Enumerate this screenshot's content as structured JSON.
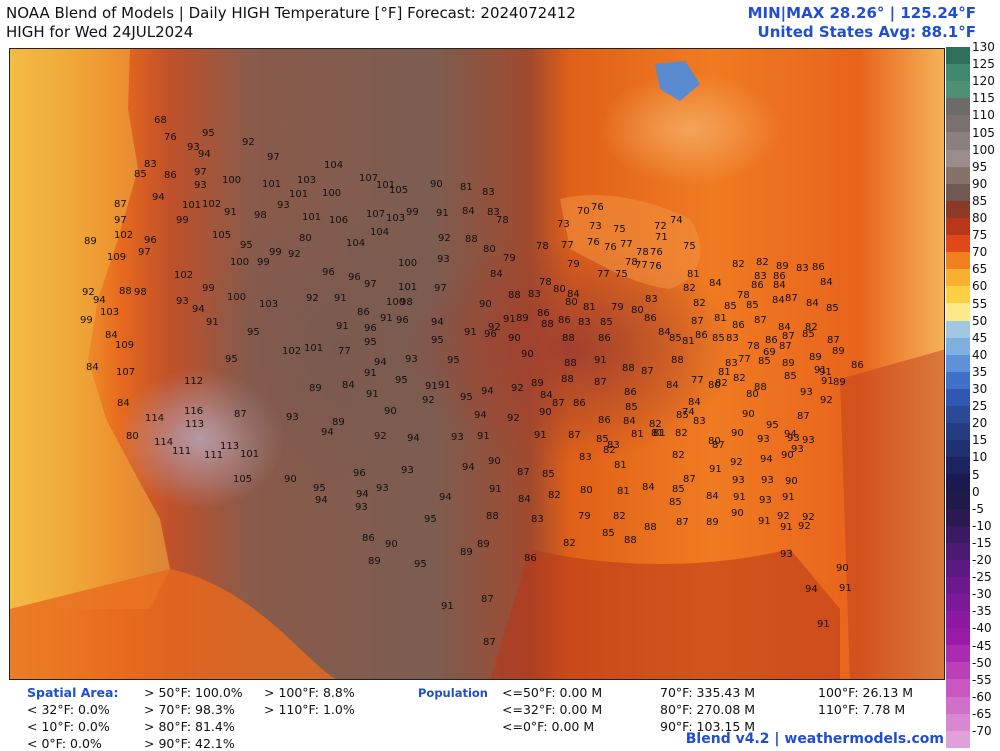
{
  "header": {
    "title_line1": "NOAA Blend of Models | Daily HIGH Temperature [°F] Forecast: 2024072412",
    "title_line2": "HIGH for Wed 24JUL2024",
    "minmax": "MIN|MAX 28.26°  |  125.24°F",
    "avg": "United States Avg: 88.1°F"
  },
  "colorbar": {
    "ticks": [
      "130",
      "125",
      "120",
      "115",
      "110",
      "105",
      "100",
      "95",
      "90",
      "85",
      "80",
      "75",
      "70",
      "65",
      "60",
      "55",
      "50",
      "45",
      "40",
      "35",
      "30",
      "25",
      "20",
      "15",
      "10",
      "5",
      "0",
      "-5",
      "-10",
      "-15",
      "-20",
      "-25",
      "-30",
      "-35",
      "-40",
      "-45",
      "-50",
      "-55",
      "-60",
      "-65",
      "-70"
    ],
    "colors": [
      "#2f6e5a",
      "#3f8a6e",
      "#4f8f74",
      "#6d6a6a",
      "#7a7070",
      "#8a8080",
      "#9a8c8c",
      "#857268",
      "#6e5a52",
      "#8a3a26",
      "#b8361a",
      "#e0481a",
      "#f08020",
      "#f8b030",
      "#fcd040",
      "#fde88a",
      "#a0c8e0",
      "#80b0e0",
      "#6090d8",
      "#4070c8",
      "#3058b0",
      "#2a4a98",
      "#243c80",
      "#203070",
      "#1c2460",
      "#1a1a50",
      "#201a48",
      "#2a1a50",
      "#3a1a60",
      "#4a1a70",
      "#5a1a80",
      "#6a1a8c",
      "#7a1a98",
      "#8a1aa0",
      "#9a1aa8",
      "#aa2ab0",
      "#ba40b8",
      "#c858c0",
      "#d070c8",
      "#d888d0",
      "#e0a0d8"
    ]
  },
  "map_labels": [
    [
      "68",
      160,
      118
    ],
    [
      "76",
      170,
      135
    ],
    [
      "95",
      208,
      131
    ],
    [
      "92",
      248,
      140
    ],
    [
      "97",
      273,
      155
    ],
    [
      "93",
      193,
      145
    ],
    [
      "94",
      204,
      152
    ],
    [
      "83",
      150,
      162
    ],
    [
      "85",
      140,
      172
    ],
    [
      "86",
      170,
      173
    ],
    [
      "97",
      200,
      170
    ],
    [
      "93",
      200,
      183
    ],
    [
      "100",
      228,
      178
    ],
    [
      "101",
      268,
      182
    ],
    [
      "103",
      303,
      178
    ],
    [
      "104",
      330,
      163
    ],
    [
      "94",
      158,
      195
    ],
    [
      "101",
      188,
      203
    ],
    [
      "102",
      208,
      202
    ],
    [
      "91",
      230,
      210
    ],
    [
      "98",
      260,
      213
    ],
    [
      "93",
      283,
      203
    ],
    [
      "101",
      295,
      192
    ],
    [
      "100",
      328,
      191
    ],
    [
      "107",
      365,
      176
    ],
    [
      "101",
      382,
      183
    ],
    [
      "105",
      395,
      188
    ],
    [
      "90",
      436,
      182
    ],
    [
      "81",
      466,
      185
    ],
    [
      "83",
      488,
      190
    ],
    [
      "87",
      120,
      202
    ],
    [
      "97",
      120,
      218
    ],
    [
      "99",
      182,
      218
    ],
    [
      "105",
      218,
      233
    ],
    [
      "95",
      246,
      243
    ],
    [
      "101",
      308,
      215
    ],
    [
      "106",
      335,
      218
    ],
    [
      "107",
      372,
      212
    ],
    [
      "103",
      392,
      216
    ],
    [
      "99",
      412,
      210
    ],
    [
      "91",
      442,
      211
    ],
    [
      "84",
      468,
      209
    ],
    [
      "83",
      493,
      210
    ],
    [
      "104",
      376,
      230
    ],
    [
      "104",
      352,
      241
    ],
    [
      "80",
      305,
      236
    ],
    [
      "92",
      444,
      236
    ],
    [
      "88",
      471,
      237
    ],
    [
      "80",
      489,
      247
    ],
    [
      "78",
      502,
      218
    ],
    [
      "89",
      90,
      239
    ],
    [
      "102",
      120,
      233
    ],
    [
      "96",
      150,
      238
    ],
    [
      "97",
      144,
      250
    ],
    [
      "109",
      113,
      255
    ],
    [
      "100",
      236,
      260
    ],
    [
      "99",
      263,
      260
    ],
    [
      "99",
      275,
      250
    ],
    [
      "92",
      294,
      252
    ],
    [
      "96",
      328,
      270
    ],
    [
      "96",
      354,
      275
    ],
    [
      "97",
      370,
      282
    ],
    [
      "100",
      404,
      261
    ],
    [
      "93",
      443,
      257
    ],
    [
      "84",
      496,
      272
    ],
    [
      "79",
      509,
      256
    ],
    [
      "78",
      542,
      244
    ],
    [
      "77",
      567,
      243
    ],
    [
      "73",
      563,
      222
    ],
    [
      "70",
      583,
      209
    ],
    [
      "76",
      597,
      205
    ],
    [
      "73",
      595,
      224
    ],
    [
      "75",
      619,
      227
    ],
    [
      "76",
      593,
      240
    ],
    [
      "76",
      610,
      245
    ],
    [
      "77",
      626,
      242
    ],
    [
      "78",
      642,
      250
    ],
    [
      "76",
      656,
      250
    ],
    [
      "72",
      660,
      224
    ],
    [
      "74",
      676,
      218
    ],
    [
      "71",
      661,
      235
    ],
    [
      "78",
      631,
      260
    ],
    [
      "76",
      655,
      264
    ],
    [
      "81",
      693,
      272
    ],
    [
      "75",
      689,
      244
    ],
    [
      "77",
      603,
      272
    ],
    [
      "75",
      621,
      272
    ],
    [
      "77",
      641,
      263
    ],
    [
      "79",
      573,
      262
    ],
    [
      "78",
      545,
      280
    ],
    [
      "80",
      559,
      287
    ],
    [
      "84",
      573,
      292
    ],
    [
      "80",
      571,
      300
    ],
    [
      "81",
      589,
      305
    ],
    [
      "92",
      88,
      290
    ],
    [
      "88",
      125,
      289
    ],
    [
      "98",
      140,
      290
    ],
    [
      "102",
      180,
      273
    ],
    [
      "99",
      208,
      286
    ],
    [
      "100",
      233,
      295
    ],
    [
      "103",
      265,
      302
    ],
    [
      "93",
      182,
      299
    ],
    [
      "94",
      198,
      307
    ],
    [
      "91",
      212,
      320
    ],
    [
      "92",
      312,
      296
    ],
    [
      "91",
      340,
      296
    ],
    [
      "86",
      363,
      310
    ],
    [
      "91",
      386,
      316
    ],
    [
      "101",
      404,
      285
    ],
    [
      "100",
      392,
      300
    ],
    [
      "98",
      406,
      300
    ],
    [
      "96",
      402,
      318
    ],
    [
      "97",
      440,
      286
    ],
    [
      "90",
      485,
      302
    ],
    [
      "88",
      514,
      293
    ],
    [
      "83",
      534,
      292
    ],
    [
      "94",
      99,
      298
    ],
    [
      "103",
      106,
      310
    ],
    [
      "99",
      86,
      318
    ],
    [
      "94",
      437,
      320
    ],
    [
      "91",
      470,
      330
    ],
    [
      "92",
      494,
      325
    ],
    [
      "91",
      509,
      317
    ],
    [
      "89",
      522,
      316
    ],
    [
      "86",
      543,
      311
    ],
    [
      "88",
      547,
      322
    ],
    [
      "86",
      564,
      318
    ],
    [
      "83",
      584,
      320
    ],
    [
      "85",
      606,
      320
    ],
    [
      "82",
      689,
      286
    ],
    [
      "84",
      715,
      281
    ],
    [
      "82",
      738,
      262
    ],
    [
      "82",
      762,
      260
    ],
    [
      "83",
      760,
      274
    ],
    [
      "86",
      779,
      274
    ],
    [
      "89",
      782,
      264
    ],
    [
      "83",
      802,
      266
    ],
    [
      "86",
      818,
      265
    ],
    [
      "84",
      826,
      280
    ],
    [
      "78",
      743,
      293
    ],
    [
      "85",
      752,
      303
    ],
    [
      "86",
      757,
      283
    ],
    [
      "84",
      778,
      298
    ],
    [
      "87",
      791,
      296
    ],
    [
      "84",
      812,
      301
    ],
    [
      "85",
      832,
      306
    ],
    [
      "82",
      699,
      301
    ],
    [
      "85",
      730,
      304
    ],
    [
      "84",
      779,
      283
    ],
    [
      "79",
      617,
      305
    ],
    [
      "80",
      637,
      308
    ],
    [
      "83",
      651,
      297
    ],
    [
      "86",
      650,
      316
    ],
    [
      "84",
      664,
      330
    ],
    [
      "85",
      675,
      336
    ],
    [
      "81",
      688,
      339
    ],
    [
      "87",
      697,
      319
    ],
    [
      "86",
      701,
      333
    ],
    [
      "85",
      718,
      336
    ],
    [
      "81",
      720,
      316
    ],
    [
      "86",
      738,
      323
    ],
    [
      "83",
      732,
      336
    ],
    [
      "87",
      760,
      318
    ],
    [
      "86",
      771,
      338
    ],
    [
      "84",
      784,
      325
    ],
    [
      "87",
      788,
      334
    ],
    [
      "82",
      811,
      325
    ],
    [
      "78",
      753,
      344
    ],
    [
      "69",
      769,
      350
    ],
    [
      "77",
      744,
      357
    ],
    [
      "85",
      764,
      359
    ],
    [
      "83",
      731,
      361
    ],
    [
      "81",
      724,
      370
    ],
    [
      "82",
      721,
      381
    ],
    [
      "80",
      714,
      383
    ],
    [
      "77",
      697,
      378
    ],
    [
      "87",
      785,
      344
    ],
    [
      "85",
      808,
      332
    ],
    [
      "87",
      833,
      338
    ],
    [
      "89",
      815,
      355
    ],
    [
      "91",
      825,
      370
    ],
    [
      "84",
      111,
      333
    ],
    [
      "95",
      253,
      330
    ],
    [
      "91",
      342,
      324
    ],
    [
      "96",
      370,
      326
    ],
    [
      "95",
      370,
      340
    ],
    [
      "102",
      288,
      349
    ],
    [
      "101",
      310,
      346
    ],
    [
      "77",
      344,
      349
    ],
    [
      "93",
      411,
      357
    ],
    [
      "95",
      453,
      358
    ],
    [
      "95",
      437,
      338
    ],
    [
      "96",
      490,
      332
    ],
    [
      "90",
      514,
      336
    ],
    [
      "90",
      527,
      352
    ],
    [
      "88",
      568,
      336
    ],
    [
      "86",
      604,
      336
    ],
    [
      "88",
      570,
      361
    ],
    [
      "91",
      600,
      358
    ],
    [
      "88",
      628,
      366
    ],
    [
      "87",
      647,
      369
    ],
    [
      "88",
      677,
      358
    ],
    [
      "94",
      380,
      360
    ],
    [
      "91",
      370,
      371
    ],
    [
      "109",
      121,
      343
    ],
    [
      "84",
      92,
      365
    ],
    [
      "107",
      122,
      370
    ],
    [
      "95",
      231,
      357
    ],
    [
      "112",
      190,
      379
    ],
    [
      "89",
      315,
      386
    ],
    [
      "84",
      348,
      383
    ],
    [
      "91",
      372,
      392
    ],
    [
      "95",
      401,
      378
    ],
    [
      "91",
      431,
      384
    ],
    [
      "91",
      444,
      383
    ],
    [
      "95",
      466,
      395
    ],
    [
      "94",
      487,
      389
    ],
    [
      "92",
      517,
      386
    ],
    [
      "89",
      537,
      381
    ],
    [
      "88",
      567,
      377
    ],
    [
      "87",
      600,
      380
    ],
    [
      "84",
      546,
      393
    ],
    [
      "87",
      558,
      401
    ],
    [
      "86",
      579,
      401
    ],
    [
      "86",
      604,
      418
    ],
    [
      "86",
      630,
      390
    ],
    [
      "85",
      631,
      405
    ],
    [
      "84",
      629,
      419
    ],
    [
      "82",
      655,
      422
    ],
    [
      "81",
      657,
      431
    ],
    [
      "85",
      682,
      413
    ],
    [
      "74",
      688,
      410
    ],
    [
      "83",
      699,
      419
    ],
    [
      "84",
      672,
      383
    ],
    [
      "84",
      694,
      400
    ],
    [
      "82",
      739,
      376
    ],
    [
      "80",
      752,
      392
    ],
    [
      "88",
      760,
      385
    ],
    [
      "89",
      788,
      361
    ],
    [
      "85",
      790,
      374
    ],
    [
      "93",
      806,
      390
    ],
    [
      "91",
      820,
      368
    ],
    [
      "91",
      827,
      379
    ],
    [
      "92",
      826,
      398
    ],
    [
      "89",
      839,
      380
    ],
    [
      "89",
      838,
      349
    ],
    [
      "86",
      857,
      363
    ],
    [
      "87",
      803,
      414
    ],
    [
      "95",
      772,
      423
    ],
    [
      "93",
      793,
      436
    ],
    [
      "93",
      797,
      447
    ],
    [
      "94",
      790,
      432
    ],
    [
      "93",
      808,
      438
    ],
    [
      "90",
      787,
      453
    ],
    [
      "84",
      123,
      401
    ],
    [
      "116",
      190,
      409
    ],
    [
      "113",
      191,
      422
    ],
    [
      "87",
      240,
      412
    ],
    [
      "93",
      292,
      415
    ],
    [
      "89",
      338,
      420
    ],
    [
      "90",
      390,
      409
    ],
    [
      "92",
      428,
      398
    ],
    [
      "94",
      480,
      413
    ],
    [
      "92",
      513,
      416
    ],
    [
      "90",
      545,
      410
    ],
    [
      "91",
      540,
      433
    ],
    [
      "87",
      574,
      433
    ],
    [
      "85",
      602,
      437
    ],
    [
      "83",
      613,
      443
    ],
    [
      "81",
      637,
      432
    ],
    [
      "81",
      659,
      431
    ],
    [
      "82",
      681,
      431
    ],
    [
      "80",
      714,
      439
    ],
    [
      "87",
      718,
      443
    ],
    [
      "90",
      737,
      431
    ],
    [
      "93",
      763,
      437
    ],
    [
      "90",
      748,
      412
    ],
    [
      "80",
      132,
      434
    ],
    [
      "114",
      151,
      416
    ],
    [
      "114",
      160,
      440
    ],
    [
      "111",
      178,
      449
    ],
    [
      "113",
      226,
      444
    ],
    [
      "111",
      210,
      453
    ],
    [
      "101",
      246,
      452
    ],
    [
      "94",
      327,
      430
    ],
    [
      "92",
      380,
      434
    ],
    [
      "94",
      413,
      436
    ],
    [
      "93",
      457,
      435
    ],
    [
      "91",
      483,
      434
    ],
    [
      "83",
      585,
      455
    ],
    [
      "82",
      609,
      448
    ],
    [
      "81",
      620,
      463
    ],
    [
      "82",
      678,
      453
    ],
    [
      "85",
      678,
      487
    ],
    [
      "87",
      689,
      477
    ],
    [
      "91",
      715,
      467
    ],
    [
      "92",
      736,
      460
    ],
    [
      "94",
      766,
      457
    ],
    [
      "93",
      767,
      478
    ],
    [
      "90",
      791,
      479
    ],
    [
      "105",
      239,
      477
    ],
    [
      "90",
      290,
      477
    ],
    [
      "95",
      319,
      486
    ],
    [
      "96",
      359,
      471
    ],
    [
      "93",
      407,
      468
    ],
    [
      "94",
      468,
      465
    ],
    [
      "90",
      494,
      459
    ],
    [
      "87",
      523,
      470
    ],
    [
      "85",
      548,
      472
    ],
    [
      "84",
      524,
      497
    ],
    [
      "83",
      537,
      517
    ],
    [
      "82",
      554,
      493
    ],
    [
      "80",
      586,
      488
    ],
    [
      "81",
      623,
      489
    ],
    [
      "84",
      648,
      485
    ],
    [
      "85",
      675,
      500
    ],
    [
      "84",
      712,
      494
    ],
    [
      "93",
      738,
      478
    ],
    [
      "91",
      739,
      495
    ],
    [
      "93",
      765,
      498
    ],
    [
      "91",
      788,
      495
    ],
    [
      "94",
      321,
      498
    ],
    [
      "94",
      362,
      492
    ],
    [
      "93",
      382,
      486
    ],
    [
      "94",
      445,
      495
    ],
    [
      "91",
      495,
      487
    ],
    [
      "79",
      584,
      514
    ],
    [
      "82",
      619,
      514
    ],
    [
      "85",
      608,
      531
    ],
    [
      "88",
      630,
      538
    ],
    [
      "88",
      650,
      525
    ],
    [
      "87",
      682,
      520
    ],
    [
      "89",
      712,
      520
    ],
    [
      "90",
      737,
      511
    ],
    [
      "91",
      764,
      519
    ],
    [
      "92",
      783,
      514
    ],
    [
      "92",
      808,
      515
    ],
    [
      "91",
      786,
      525
    ],
    [
      "92",
      804,
      524
    ],
    [
      "93",
      361,
      505
    ],
    [
      "95",
      430,
      517
    ],
    [
      "88",
      492,
      514
    ],
    [
      "86",
      368,
      536
    ],
    [
      "90",
      391,
      542
    ],
    [
      "89",
      483,
      542
    ],
    [
      "89",
      466,
      550
    ],
    [
      "86",
      530,
      556
    ],
    [
      "82",
      569,
      541
    ],
    [
      "89",
      374,
      559
    ],
    [
      "95",
      420,
      562
    ],
    [
      "93",
      786,
      552
    ],
    [
      "90",
      842,
      566
    ],
    [
      "94",
      811,
      587
    ],
    [
      "91",
      845,
      586
    ],
    [
      "91",
      447,
      604
    ],
    [
      "87",
      487,
      597
    ],
    [
      "91",
      823,
      622
    ],
    [
      "87",
      489,
      640
    ]
  ],
  "footer": {
    "spatial_title": "Spatial Area:",
    "spatial_col1": [
      "< 32°F: 0.0%",
      "< 10°F: 0.0%",
      "< 0°F: 0.0%"
    ],
    "spatial_col2": [
      "> 50°F: 100.0%",
      "> 70°F: 98.3%",
      "> 80°F: 81.4%",
      "> 90°F: 42.1%"
    ],
    "spatial_col3": [
      "> 100°F: 8.8%",
      "> 110°F: 1.0%"
    ],
    "pop_title": "Population",
    "pop_col1": [
      "<=50°F: 0.00 M",
      "<=32°F: 0.00 M",
      "<=0°F: 0.00 M"
    ],
    "pop_col2": [
      "70°F: 335.43 M",
      "80°F: 270.08 M",
      "90°F: 103.15 M"
    ],
    "pop_col3": [
      "100°F: 26.13 M",
      "110°F: 7.78 M"
    ]
  },
  "credit": "Blend v4.2 | weathermodels.com"
}
